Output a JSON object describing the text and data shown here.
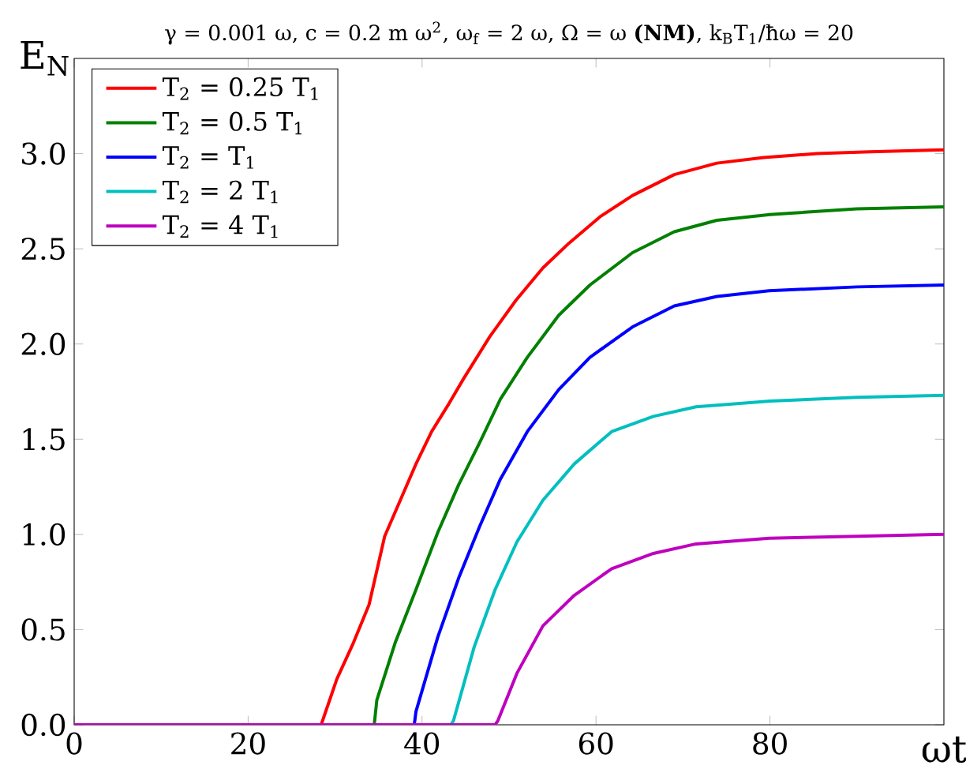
{
  "chart_data": {
    "type": "line",
    "title": "γ = 0.001 ω, c = 0.2 m ω$^{2}$, ω$_{f}$ = 2 ω, Ω = ω **(NM)**, k$_{B}$T$_{1}$/ħω = 20",
    "xlabel": "ωt",
    "ylabel": "E$_{N}$",
    "xlim": [
      0,
      100
    ],
    "ylim": [
      0,
      3.5
    ],
    "xticks": [
      0,
      20,
      40,
      60,
      80
    ],
    "yticks": [
      {
        "value": 0,
        "label": "0.0"
      },
      0.5,
      {
        "value": 1,
        "label": "1.0"
      },
      1.5,
      {
        "value": 2,
        "label": "2.0"
      },
      2.5,
      {
        "value": 3,
        "label": "3.0"
      }
    ],
    "grid": false,
    "legend": "top left",
    "marker": "none",
    "line_style": "solid",
    "series": [
      {
        "name": "T$_{2}$ = 0.25 T$_{1}$",
        "color": "#ff0000",
        "x": [
          0,
          28.4,
          30.2,
          32.1,
          33.9,
          35.7,
          37.5,
          39.3,
          41.1,
          43.0,
          44.8,
          47.8,
          50.8,
          53.9,
          56.9,
          60.5,
          64.2,
          69.0,
          73.9,
          79.3,
          85.4,
          91.5,
          100
        ],
        "values": [
          0,
          0,
          0.24,
          0.43,
          0.63,
          0.99,
          1.18,
          1.37,
          1.54,
          1.68,
          1.82,
          2.04,
          2.23,
          2.4,
          2.53,
          2.67,
          2.78,
          2.89,
          2.95,
          2.98,
          3.0,
          3.01,
          3.02
        ]
      },
      {
        "name": "T$_{2}$ = 0.5 T$_{1}$",
        "color": "#008000",
        "x": [
          0,
          34.5,
          34.8,
          36.9,
          39.3,
          41.8,
          44.2,
          46.6,
          49.0,
          52.1,
          55.7,
          59.3,
          64.2,
          69.0,
          73.9,
          80,
          90,
          100
        ],
        "values": [
          0,
          0,
          0.13,
          0.43,
          0.71,
          1.01,
          1.26,
          1.48,
          1.71,
          1.93,
          2.15,
          2.31,
          2.48,
          2.59,
          2.65,
          2.68,
          2.71,
          2.72
        ]
      },
      {
        "name": "T$_{2}$ = T$_{1}$",
        "color": "#0000ff",
        "x": [
          0,
          39.1,
          39.3,
          41.8,
          44.2,
          46.6,
          49.0,
          52.1,
          55.7,
          59.3,
          64.2,
          69.0,
          73.9,
          79.9,
          90,
          100
        ],
        "values": [
          0,
          0,
          0.07,
          0.46,
          0.77,
          1.04,
          1.29,
          1.54,
          1.76,
          1.93,
          2.09,
          2.2,
          2.25,
          2.28,
          2.3,
          2.31
        ]
      },
      {
        "name": "T$_{2}$ = 2 T$_{1}$",
        "color": "#00bfbf",
        "x": [
          0,
          43.3,
          43.6,
          46.0,
          48.4,
          50.9,
          53.9,
          57.5,
          61.8,
          66.6,
          71.5,
          80,
          90,
          100
        ],
        "values": [
          0,
          0,
          0.02,
          0.41,
          0.71,
          0.96,
          1.18,
          1.37,
          1.54,
          1.62,
          1.67,
          1.7,
          1.72,
          1.73
        ]
      },
      {
        "name": "T$_{2}$ = 4 T$_{1}$",
        "color": "#bf00bf",
        "x": [
          0,
          48.4,
          48.7,
          50.9,
          53.9,
          57.5,
          61.8,
          66.6,
          71.5,
          79.9,
          90,
          100
        ],
        "values": [
          0,
          0,
          0.02,
          0.27,
          0.52,
          0.68,
          0.82,
          0.9,
          0.95,
          0.98,
          0.99,
          1.0
        ]
      }
    ]
  }
}
